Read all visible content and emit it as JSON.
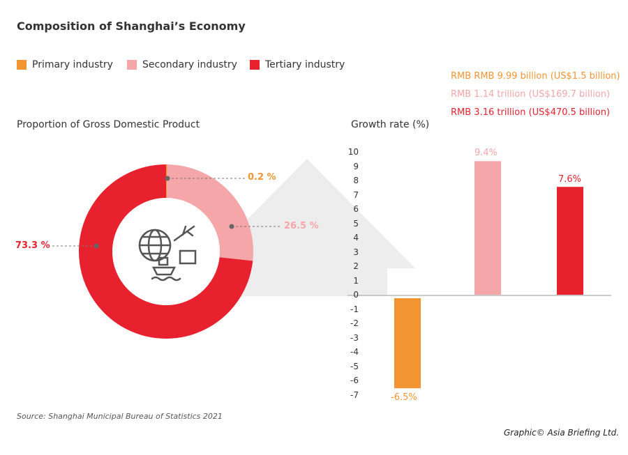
{
  "title": "Composition of Shanghai’s Economy",
  "legend": [
    {
      "label": "Primary industry",
      "color": "#f39433"
    },
    {
      "label": "Secondary industry",
      "color": "#f4a6a9"
    },
    {
      "label": "Tertiary industry",
      "color": "#e8212e"
    }
  ],
  "values_text": [
    "RMB RMB 9.99 billion (US$1.5 billion)",
    "RMB 1.14 trillion (US$169.7 billion)",
    "RMB 3.16 trillion (US$470.5 billion)"
  ],
  "source": "Source: Shanghai  Municipal Bureau of Statistics 2021",
  "credit": "Graphic© Asia Briefing Ltd.",
  "chart_data": [
    {
      "type": "pie",
      "subtype": "donut",
      "title": "Proportion of Gross Domestic Product",
      "categories": [
        "Primary industry",
        "Secondary industry",
        "Tertiary industry"
      ],
      "values": [
        0.2,
        26.5,
        73.3
      ],
      "labels": [
        "0.2 %",
        "26.5 %",
        "73.3 %"
      ],
      "colors": [
        "#f39433",
        "#f4a6a9",
        "#e8212e"
      ],
      "center_icon": "globe-plane-ship-box-icon"
    },
    {
      "type": "bar",
      "title": "Growth rate (%)",
      "categories": [
        "Primary industry",
        "Secondary industry",
        "Tertiary industry"
      ],
      "values": [
        -6.5,
        9.4,
        7.6
      ],
      "labels": [
        "-6.5%",
        "9.4%",
        "7.6%"
      ],
      "colors": [
        "#f39433",
        "#f4a6a9",
        "#e8212e"
      ],
      "ylim": [
        -7,
        10
      ],
      "yticks": [
        "10",
        "9",
        "8",
        "7",
        "6",
        "5",
        "4",
        "3",
        "2",
        "1",
        "0",
        "-1",
        "-2",
        "-3",
        "-4",
        "-5",
        "-6",
        "-7"
      ],
      "grid": false
    }
  ]
}
